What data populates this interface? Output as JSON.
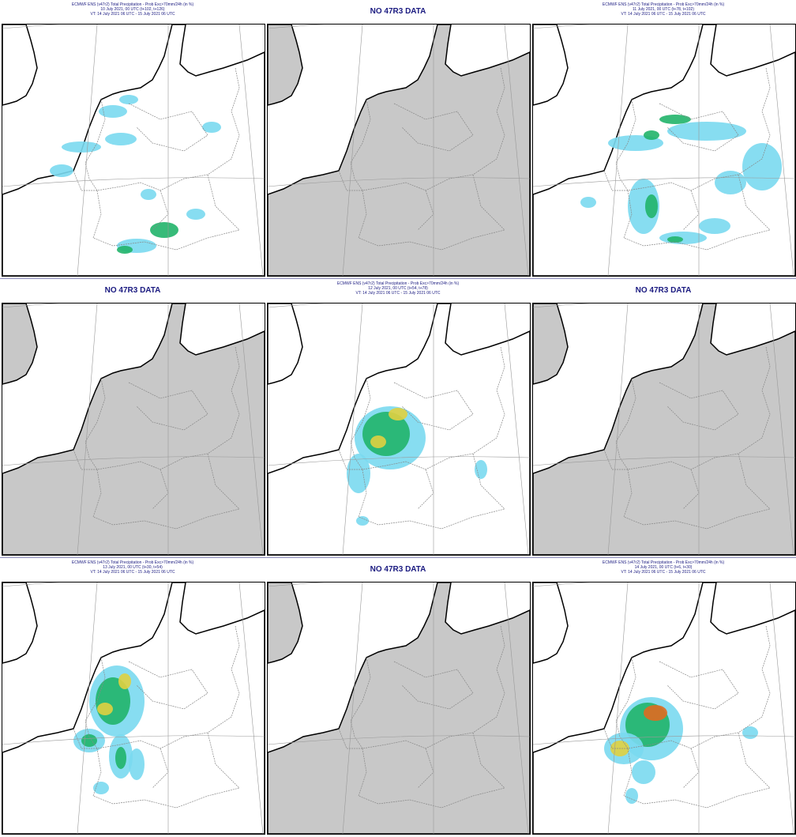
{
  "panels": [
    {
      "title": [
        "ECMWF ENS (v47r2) Total Precipitation - Prob Exc>70mm/24h (in %)",
        "10 July 2021, 00 UTC (t+102, t+126)",
        "VT: 14 July 2021 06 UTC - 15 July 2021 06 UTC"
      ]
    },
    {
      "no_data": "NO 47R3 DATA"
    },
    {
      "title": [
        "ECMWF ENS (v47r2) Total Precipitation - Prob Exc>70mm/24h (in %)",
        "11 July 2021, 00 UTC (t+78, t+102)",
        "VT: 14 July 2021 06 UTC - 15 July 2021 06 UTC"
      ]
    },
    {
      "no_data": "NO 47R3 DATA"
    },
    {
      "title": [
        "ECMWF ENS (v47r2) Total Precipitation - Prob Exc>70mm/24h (in %)",
        "12 July 2021, 00 UTC (t+54, t+78)",
        "VT: 14 July 2021 06 UTC - 15 July 2021 06 UTC"
      ]
    },
    {
      "no_data": "NO 47R3 DATA"
    },
    {
      "title": [
        "ECMWF ENS (v47r2) Total Precipitation - Prob Exc>70mm/24h (in %)",
        "13 July 2021, 00 UTC (t+30, t+54)",
        "VT: 14 July 2021 06 UTC - 15 July 2021 06 UTC"
      ]
    },
    {
      "no_data": "NO 47R3 DATA"
    },
    {
      "title": [
        "ECMWF ENS (v47r2) Total Precipitation - Prob Exc>70mm/24h (in %)",
        "14 July 2021, 00 UTC (t+6, t+30)",
        "VT: 14 July 2021 06 UTC - 15 July 2021 06 UTC"
      ]
    }
  ]
}
